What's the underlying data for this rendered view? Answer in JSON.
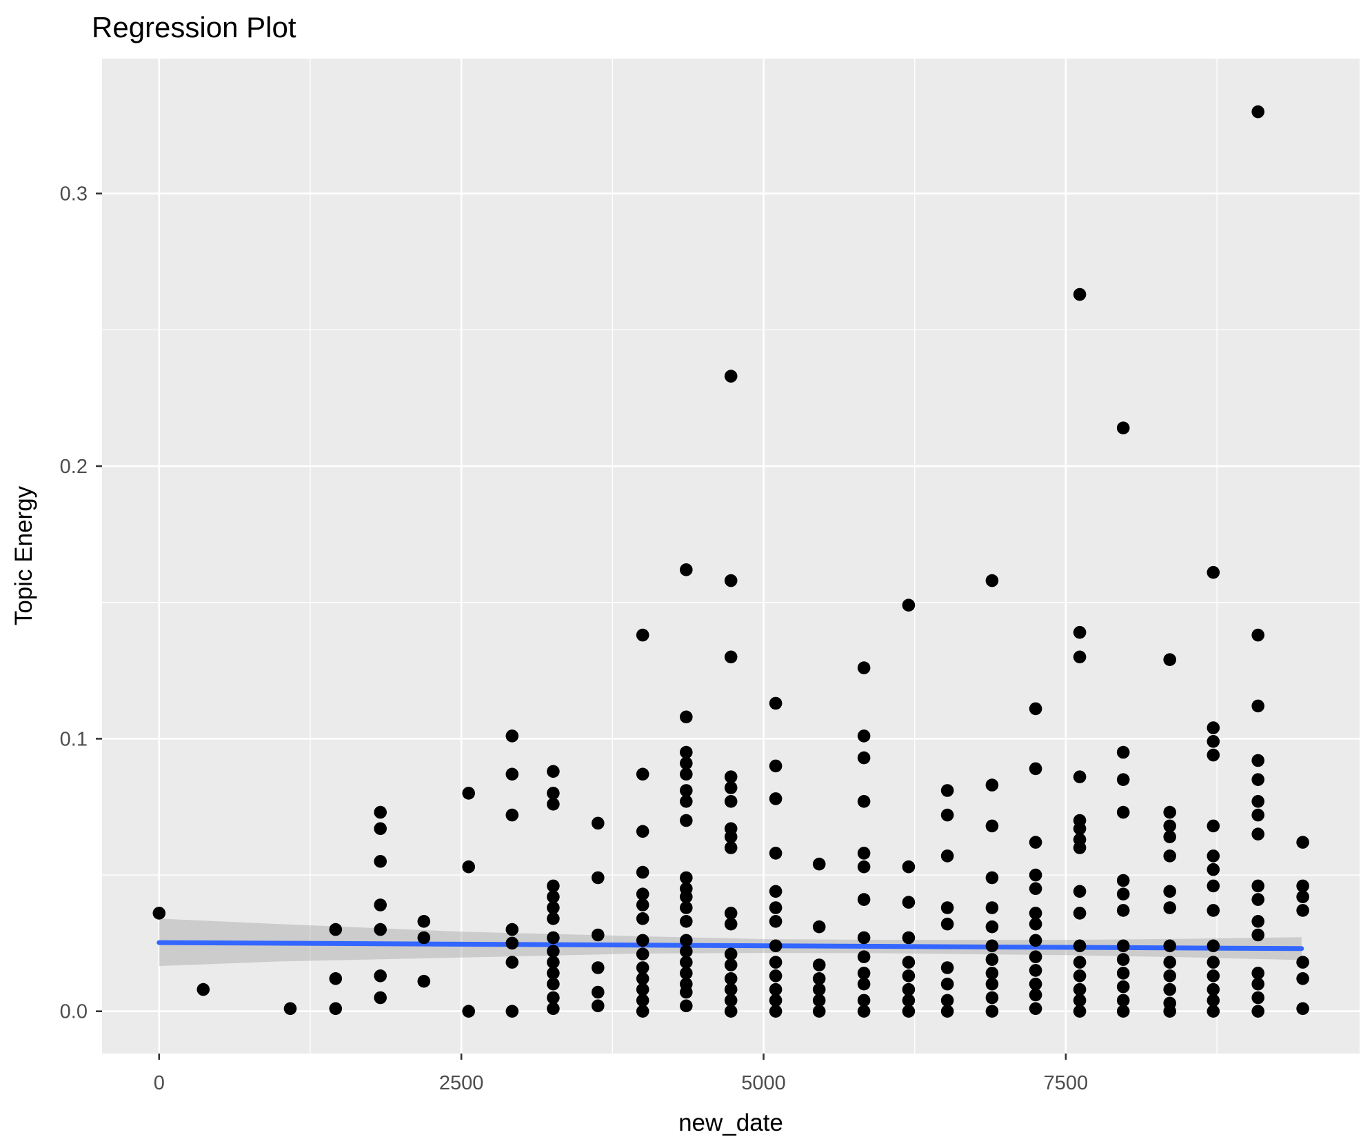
{
  "colors": {
    "panel_background": "#EBEBEB",
    "gridline": "#FFFFFF",
    "point": "#000000",
    "smooth_line": "#3366FF",
    "confidence_band": "#9B9B9B",
    "confidence_band_opacity": 0.38,
    "axis_text": "#4D4D4D",
    "tick_mark": "#333333",
    "title_text": "#000000",
    "outer_background": "#FFFFFF"
  },
  "chart_data": {
    "type": "scatter",
    "title": "Regression Plot",
    "xlabel": "new_date",
    "ylabel": "Topic Energy",
    "grid": true,
    "legend_position": "none",
    "xlim": [
      -472,
      9930
    ],
    "ylim": [
      -0.0155,
      0.3495
    ],
    "x_ticks": [
      0,
      2500,
      5000,
      7500
    ],
    "x_tick_labels": [
      "0",
      "2500",
      "5000",
      "7500"
    ],
    "x_minor_ticks": [
      1250,
      3750,
      6250,
      8750
    ],
    "y_ticks": [
      0.0,
      0.1,
      0.2,
      0.3
    ],
    "y_tick_labels": [
      "0.0",
      "0.1",
      "0.2",
      "0.3"
    ],
    "y_minor_ticks": [
      0.05,
      0.15,
      0.25
    ],
    "columns": [
      {
        "x": 0,
        "ys": [
          0.036
        ]
      },
      {
        "x": 365,
        "ys": [
          0.008
        ]
      },
      {
        "x": 1085,
        "ys": [
          0.001
        ]
      },
      {
        "x": 1460,
        "ys": [
          0.03,
          0.012,
          0.001
        ]
      },
      {
        "x": 1830,
        "ys": [
          0.073,
          0.067,
          0.055,
          0.039,
          0.03,
          0.013,
          0.005
        ]
      },
      {
        "x": 2190,
        "ys": [
          0.033,
          0.027,
          0.011
        ]
      },
      {
        "x": 2560,
        "ys": [
          0.08,
          0.053,
          0.0
        ]
      },
      {
        "x": 2920,
        "ys": [
          0.101,
          0.087,
          0.072,
          0.03,
          0.025,
          0.018,
          0.0
        ]
      },
      {
        "x": 3260,
        "ys": [
          0.088,
          0.08,
          0.076,
          0.046,
          0.042,
          0.038,
          0.034,
          0.027,
          0.022,
          0.018,
          0.014,
          0.01,
          0.005,
          0.001
        ]
      },
      {
        "x": 3630,
        "ys": [
          0.069,
          0.049,
          0.028,
          0.016,
          0.007,
          0.002
        ]
      },
      {
        "x": 4000,
        "ys": [
          0.138,
          0.087,
          0.066,
          0.051,
          0.043,
          0.039,
          0.034,
          0.026,
          0.021,
          0.016,
          0.012,
          0.008,
          0.004,
          0.0
        ]
      },
      {
        "x": 4360,
        "ys": [
          0.162,
          0.108,
          0.095,
          0.091,
          0.087,
          0.081,
          0.077,
          0.07,
          0.049,
          0.045,
          0.042,
          0.038,
          0.033,
          0.026,
          0.022,
          0.018,
          0.014,
          0.01,
          0.007,
          0.002
        ]
      },
      {
        "x": 4730,
        "ys": [
          0.233,
          0.158,
          0.13,
          0.086,
          0.082,
          0.077,
          0.067,
          0.064,
          0.06,
          0.036,
          0.032,
          0.021,
          0.017,
          0.012,
          0.008,
          0.004,
          0.0
        ]
      },
      {
        "x": 5100,
        "ys": [
          0.113,
          0.09,
          0.078,
          0.058,
          0.044,
          0.038,
          0.033,
          0.024,
          0.018,
          0.013,
          0.008,
          0.004,
          0.0
        ]
      },
      {
        "x": 5460,
        "ys": [
          0.054,
          0.031,
          0.017,
          0.012,
          0.008,
          0.004,
          0.0
        ]
      },
      {
        "x": 5830,
        "ys": [
          0.126,
          0.101,
          0.093,
          0.077,
          0.058,
          0.053,
          0.041,
          0.027,
          0.02,
          0.014,
          0.01,
          0.004,
          0.0
        ]
      },
      {
        "x": 6200,
        "ys": [
          0.149,
          0.053,
          0.04,
          0.027,
          0.018,
          0.013,
          0.008,
          0.004,
          0.0
        ]
      },
      {
        "x": 6520,
        "ys": [
          0.081,
          0.072,
          0.057,
          0.038,
          0.032,
          0.016,
          0.01,
          0.004,
          0.0
        ]
      },
      {
        "x": 6890,
        "ys": [
          0.158,
          0.083,
          0.068,
          0.049,
          0.038,
          0.031,
          0.024,
          0.019,
          0.014,
          0.01,
          0.005,
          0.0
        ]
      },
      {
        "x": 7250,
        "ys": [
          0.111,
          0.089,
          0.062,
          0.05,
          0.045,
          0.036,
          0.032,
          0.026,
          0.02,
          0.015,
          0.01,
          0.006,
          0.001
        ]
      },
      {
        "x": 7615,
        "ys": [
          0.263,
          0.139,
          0.13,
          0.086,
          0.07,
          0.067,
          0.063,
          0.06,
          0.044,
          0.036,
          0.024,
          0.018,
          0.013,
          0.008,
          0.004,
          0.0
        ]
      },
      {
        "x": 7975,
        "ys": [
          0.214,
          0.095,
          0.085,
          0.073,
          0.048,
          0.043,
          0.037,
          0.024,
          0.019,
          0.014,
          0.009,
          0.004,
          0.0
        ]
      },
      {
        "x": 8360,
        "ys": [
          0.129,
          0.073,
          0.068,
          0.064,
          0.057,
          0.044,
          0.038,
          0.024,
          0.018,
          0.013,
          0.008,
          0.003,
          0.0
        ]
      },
      {
        "x": 8720,
        "ys": [
          0.161,
          0.104,
          0.099,
          0.094,
          0.068,
          0.057,
          0.052,
          0.046,
          0.037,
          0.024,
          0.018,
          0.013,
          0.008,
          0.004,
          0.0
        ]
      },
      {
        "x": 9090,
        "ys": [
          0.33,
          0.138,
          0.112,
          0.092,
          0.085,
          0.077,
          0.072,
          0.065,
          0.046,
          0.041,
          0.033,
          0.028,
          0.014,
          0.01,
          0.005,
          0.0
        ]
      },
      {
        "x": 9460,
        "ys": [
          0.062,
          0.046,
          0.042,
          0.037,
          0.018,
          0.012,
          0.001
        ]
      }
    ],
    "regression": {
      "line": {
        "x0": 0,
        "y0": 0.0252,
        "x1": 9450,
        "y1": 0.023
      },
      "band_upper": [
        [
          0,
          0.034
        ],
        [
          1000,
          0.032
        ],
        [
          2500,
          0.0292
        ],
        [
          4000,
          0.0275
        ],
        [
          5000,
          0.0265
        ],
        [
          6000,
          0.0262
        ],
        [
          7500,
          0.0262
        ],
        [
          8500,
          0.0266
        ],
        [
          9450,
          0.0272
        ]
      ],
      "band_lower": [
        [
          0,
          0.0166
        ],
        [
          1000,
          0.0183
        ],
        [
          2500,
          0.0197
        ],
        [
          4000,
          0.0212
        ],
        [
          5000,
          0.0214
        ],
        [
          6000,
          0.0213
        ],
        [
          7500,
          0.0206
        ],
        [
          8500,
          0.0198
        ],
        [
          9450,
          0.0188
        ]
      ]
    }
  }
}
